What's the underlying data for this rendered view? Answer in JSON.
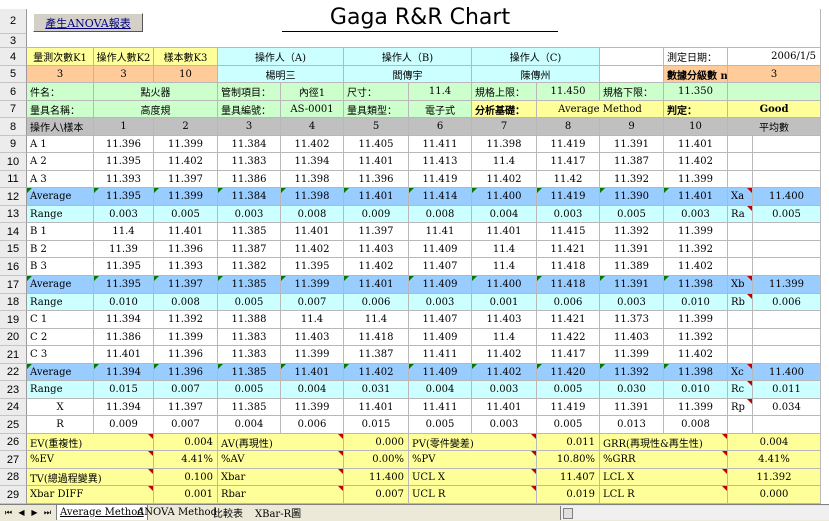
{
  "title": "Gaga R&R Chart",
  "anova_button": "產生ANOVA報表",
  "row_numbers": [
    "2",
    "3",
    "4",
    "5",
    "6",
    "7",
    "8",
    "9",
    "10",
    "11",
    "12",
    "13",
    "14",
    "15",
    "16",
    "17",
    "18",
    "19",
    "20",
    "21",
    "22",
    "23",
    "24",
    "25",
    "26",
    "27",
    "28",
    "29"
  ],
  "header": {
    "trials_label": "量測次數K1",
    "trials_value": "3",
    "appraisers_label": "操作人數K2",
    "appraisers_value": "3",
    "samples_label": "樣本數K3",
    "samples_value": "10",
    "appraiser_a_label": "操作人（A)",
    "appraiser_a_name": "楊明三",
    "appraiser_b_label": "操作人（B)",
    "appraiser_b_name": "閻傳宇",
    "appraiser_c_label": "操作人（C)",
    "appraiser_c_name": "陳傳州",
    "date_label": "測定日期：",
    "date_value": "2006/1/5",
    "ndc_label": "數據分級數 ndc：",
    "ndc_value": "3"
  },
  "info": {
    "part_name_label": "件名：",
    "part_name_value": "點火器",
    "control_item_label": "管制項目：",
    "control_item_value": "內徑1",
    "dimension_label": "尺寸：",
    "dimension_value": "11.4",
    "usl_label": "規格上限：",
    "usl_value": "11.450",
    "lsl_label": "規格下限：",
    "lsl_value": "11.350",
    "gauge_name_label": "量具名稱：",
    "gauge_name_value": "高度規",
    "gauge_no_label": "量具編號：",
    "gauge_no_value": "AS-0001",
    "gauge_type_label": "量具類型：",
    "gauge_type_value": "電子式",
    "analysis_label": "分析基礎：",
    "analysis_value": "Average  Method",
    "judgement_label": "判定：",
    "judgement_value": "Good"
  },
  "table_header": {
    "corner": "操作人\\樣本",
    "columns": [
      "1",
      "2",
      "3",
      "4",
      "5",
      "6",
      "7",
      "8",
      "9",
      "10"
    ],
    "mean_label": "平均數"
  },
  "rows": [
    {
      "label": "A    1",
      "values": [
        "11.396",
        "11.399",
        "11.384",
        "11.402",
        "11.405",
        "11.411",
        "11.398",
        "11.419",
        "11.391",
        "11.401"
      ],
      "stat_label": "",
      "stat_value": ""
    },
    {
      "label": "A    2",
      "values": [
        "11.395",
        "11.402",
        "11.383",
        "11.394",
        "11.401",
        "11.413",
        "11.4",
        "11.417",
        "11.387",
        "11.402"
      ],
      "stat_label": "",
      "stat_value": ""
    },
    {
      "label": "A    3",
      "values": [
        "11.393",
        "11.397",
        "11.386",
        "11.398",
        "11.396",
        "11.419",
        "11.402",
        "11.42",
        "11.392",
        "11.399"
      ],
      "stat_label": "",
      "stat_value": ""
    },
    {
      "label": "Average",
      "values": [
        "11.395",
        "11.399",
        "11.384",
        "11.398",
        "11.401",
        "11.414",
        "11.400",
        "11.419",
        "11.390",
        "11.401"
      ],
      "stat_label": "Xa",
      "stat_value": "11.400"
    },
    {
      "label": "Range",
      "values": [
        "0.003",
        "0.005",
        "0.003",
        "0.008",
        "0.009",
        "0.008",
        "0.004",
        "0.003",
        "0.005",
        "0.003"
      ],
      "stat_label": "Ra",
      "stat_value": "0.005"
    },
    {
      "label": "B    1",
      "values": [
        "11.4",
        "11.401",
        "11.385",
        "11.401",
        "11.397",
        "11.41",
        "11.401",
        "11.415",
        "11.392",
        "11.399"
      ],
      "stat_label": "",
      "stat_value": ""
    },
    {
      "label": "B    2",
      "values": [
        "11.39",
        "11.396",
        "11.387",
        "11.402",
        "11.403",
        "11.409",
        "11.4",
        "11.421",
        "11.391",
        "11.392"
      ],
      "stat_label": "",
      "stat_value": ""
    },
    {
      "label": "B    3",
      "values": [
        "11.395",
        "11.393",
        "11.382",
        "11.395",
        "11.402",
        "11.407",
        "11.4",
        "11.418",
        "11.389",
        "11.402"
      ],
      "stat_label": "",
      "stat_value": ""
    },
    {
      "label": "Average",
      "values": [
        "11.395",
        "11.397",
        "11.385",
        "11.399",
        "11.401",
        "11.409",
        "11.400",
        "11.418",
        "11.391",
        "11.398"
      ],
      "stat_label": "Xb",
      "stat_value": "11.399"
    },
    {
      "label": "Range",
      "values": [
        "0.010",
        "0.008",
        "0.005",
        "0.007",
        "0.006",
        "0.003",
        "0.001",
        "0.006",
        "0.003",
        "0.010"
      ],
      "stat_label": "Rb",
      "stat_value": "0.006"
    },
    {
      "label": "C    1",
      "values": [
        "11.394",
        "11.392",
        "11.388",
        "11.4",
        "11.4",
        "11.407",
        "11.403",
        "11.421",
        "11.373",
        "11.399"
      ],
      "stat_label": "",
      "stat_value": ""
    },
    {
      "label": "C    2",
      "values": [
        "11.386",
        "11.399",
        "11.383",
        "11.403",
        "11.418",
        "11.409",
        "11.4",
        "11.422",
        "11.403",
        "11.392"
      ],
      "stat_label": "",
      "stat_value": ""
    },
    {
      "label": "C    3",
      "values": [
        "11.401",
        "11.396",
        "11.383",
        "11.399",
        "11.387",
        "11.411",
        "11.402",
        "11.417",
        "11.399",
        "11.402"
      ],
      "stat_label": "",
      "stat_value": ""
    },
    {
      "label": "Average",
      "values": [
        "11.394",
        "11.396",
        "11.385",
        "11.401",
        "11.402",
        "11.409",
        "11.402",
        "11.420",
        "11.392",
        "11.398"
      ],
      "stat_label": "Xc",
      "stat_value": "11.400"
    },
    {
      "label": "Range",
      "values": [
        "0.015",
        "0.007",
        "0.005",
        "0.004",
        "0.031",
        "0.004",
        "0.003",
        "0.005",
        "0.030",
        "0.010"
      ],
      "stat_label": "Rc",
      "stat_value": "0.011"
    },
    {
      "label": "X",
      "values": [
        "11.394",
        "11.397",
        "11.385",
        "11.399",
        "11.401",
        "11.411",
        "11.401",
        "11.419",
        "11.391",
        "11.399"
      ],
      "stat_label": "Rp",
      "stat_value": "0.034"
    },
    {
      "label": "R",
      "values": [
        "0.009",
        "0.007",
        "0.004",
        "0.006",
        "0.015",
        "0.005",
        "0.003",
        "0.005",
        "0.013",
        "0.008"
      ],
      "stat_label": "",
      "stat_value": ""
    }
  ],
  "summary": [
    {
      "l1": "EV(重複性)",
      "v1": "0.004",
      "l2": "AV(再現性)",
      "v2": "0.000",
      "l3": "PV(零件變差)",
      "v3": "0.011",
      "l4": "GRR(再現性&再生性)",
      "v4": "0.004"
    },
    {
      "l1": "%EV",
      "v1": "4.41%",
      "l2": "%AV",
      "v2": "0.00%",
      "l3": "%PV",
      "v3": "10.80%",
      "l4": "%GRR",
      "v4": "4.41%"
    },
    {
      "l1": "TV(總過程變異)",
      "v1": "0.100",
      "l2": "Xbar",
      "v2": "11.400",
      "l3": "UCL X",
      "v3": "11.407",
      "l4": "LCL X",
      "v4": "11.392"
    },
    {
      "l1": "Xbar DIFF",
      "v1": "0.001",
      "l2": "Rbar",
      "v2": "0.007",
      "l3": "UCL R",
      "v3": "0.019",
      "l4": "LCL R",
      "v4": "0.000"
    }
  ],
  "tabs": [
    "Average  Method",
    "ANOVA Method",
    "比較表",
    "XBar-R圖"
  ],
  "active_tab": "Average  Method",
  "nav_buttons": [
    "⏮",
    "◀",
    "▶",
    "⏭"
  ],
  "colors": {
    "yellow": "#ffff99",
    "light_green": "#ccffcc",
    "light_cyan": "#ccffff",
    "blue": "#99ccff",
    "orange": "#ffcc99",
    "gray": "#c0c0c0"
  }
}
